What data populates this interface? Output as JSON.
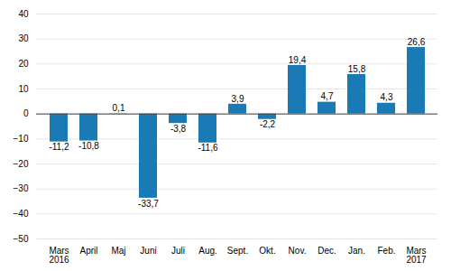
{
  "chart_data": {
    "type": "bar",
    "categories": [
      "Mars\n2016",
      "April",
      "Maj",
      "Juni",
      "Juli",
      "Aug.",
      "Sept.",
      "Okt.",
      "Nov.",
      "Dec.",
      "Jan.",
      "Feb.",
      "Mars\n2017"
    ],
    "values": [
      -11.2,
      -10.8,
      0.1,
      -33.7,
      -3.8,
      -11.6,
      3.9,
      -2.2,
      19.4,
      4.7,
      15.8,
      4.3,
      26.6
    ],
    "value_labels": [
      "-11,2",
      "-10,8",
      "0,1",
      "-33,7",
      "-3,8",
      "-11,6",
      "3,9",
      "-2,2",
      "19,4",
      "4,7",
      "15,8",
      "4,3",
      "26,6"
    ],
    "color": "#1a7ab5",
    "ylim": [
      -50,
      40
    ],
    "yticks": [
      -50,
      -40,
      -30,
      -20,
      -10,
      0,
      10,
      20,
      30,
      40
    ],
    "grid": true,
    "data_labels": true
  }
}
